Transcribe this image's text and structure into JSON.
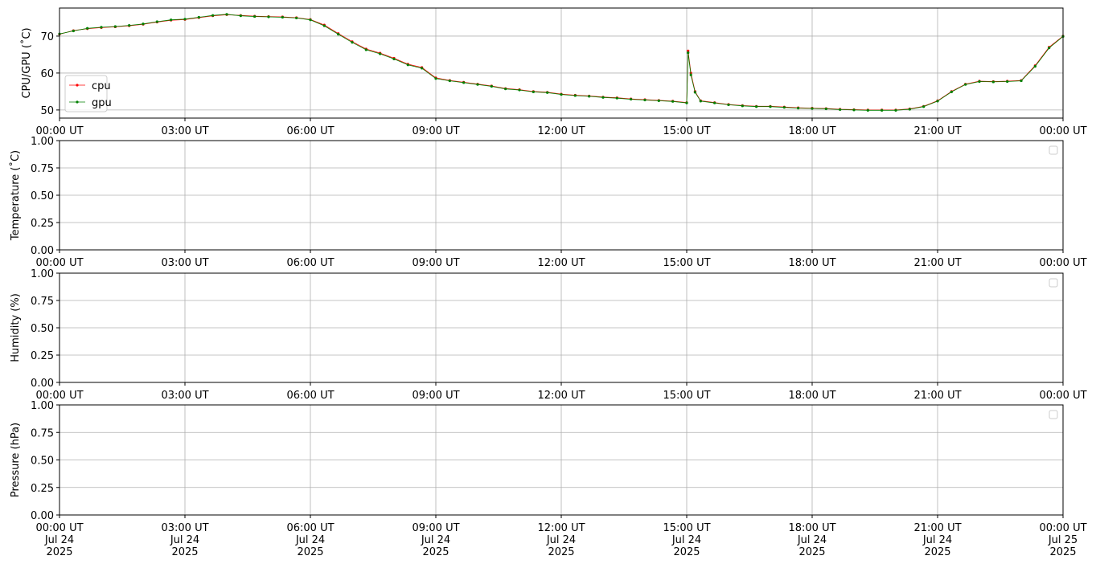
{
  "chart_data": [
    {
      "type": "line",
      "ylabel": "CPU/GPU (˚C)",
      "grid": true,
      "legend": "upper left",
      "xlim": [
        0,
        1440
      ],
      "ylim": [
        47.8,
        77.6
      ],
      "yticks": [
        50,
        60,
        70
      ],
      "xticks": [
        {
          "value": 0,
          "label": "00:00 UT"
        },
        {
          "value": 180,
          "label": "03:00 UT"
        },
        {
          "value": 360,
          "label": "06:00 UT"
        },
        {
          "value": 540,
          "label": "09:00 UT"
        },
        {
          "value": 720,
          "label": "12:00 UT"
        },
        {
          "value": 900,
          "label": "15:00 UT"
        },
        {
          "value": 1080,
          "label": "18:00 UT"
        },
        {
          "value": 1260,
          "label": "21:00 UT"
        },
        {
          "value": 1440,
          "label": "00:00 UT"
        }
      ],
      "x": [
        0,
        20,
        40,
        60,
        80,
        100,
        120,
        140,
        160,
        180,
        200,
        220,
        240,
        260,
        280,
        300,
        320,
        340,
        360,
        380,
        400,
        420,
        440,
        460,
        480,
        500,
        520,
        540,
        560,
        580,
        600,
        620,
        640,
        660,
        680,
        700,
        720,
        740,
        760,
        780,
        800,
        820,
        840,
        860,
        880,
        900,
        902,
        906,
        912,
        920,
        940,
        960,
        980,
        1000,
        1020,
        1040,
        1060,
        1080,
        1100,
        1120,
        1140,
        1160,
        1180,
        1200,
        1220,
        1240,
        1260,
        1280,
        1300,
        1320,
        1340,
        1360,
        1380,
        1400,
        1420,
        1440
      ],
      "series": [
        {
          "name": "cpu",
          "color": "#ff0000",
          "values": [
            70.5,
            71.5,
            72,
            72.3,
            72.5,
            72.8,
            73.2,
            73.8,
            74.3,
            74.5,
            75,
            75.5,
            75.8,
            75.6,
            75.4,
            75.3,
            75.2,
            75,
            74.5,
            73,
            70.7,
            68.5,
            66.5,
            65.4,
            64,
            62.4,
            61.5,
            58.7,
            58,
            57.5,
            57,
            56.5,
            55.8,
            55.5,
            55,
            54.8,
            54.3,
            54,
            53.8,
            53.5,
            53.3,
            53,
            52.8,
            52.6,
            52.4,
            52,
            66,
            60,
            55,
            52.5,
            52,
            51.5,
            51.2,
            51,
            51,
            50.8,
            50.6,
            50.5,
            50.4,
            50.2,
            50.1,
            50,
            50,
            50,
            50.3,
            51,
            52.5,
            55,
            57,
            57.8,
            57.7,
            57.8,
            58,
            62,
            67,
            70
          ]
        },
        {
          "name": "gpu",
          "color": "#008000",
          "values": [
            70.6,
            71.4,
            72.1,
            72.4,
            72.6,
            72.9,
            73.3,
            73.9,
            74.4,
            74.6,
            75.1,
            75.6,
            75.9,
            75.5,
            75.3,
            75.2,
            75.1,
            74.9,
            74.4,
            72.8,
            70.5,
            68.3,
            66.3,
            65.2,
            63.8,
            62.2,
            61.3,
            58.5,
            57.9,
            57.4,
            56.9,
            56.4,
            55.7,
            55.4,
            54.9,
            54.7,
            54.2,
            53.9,
            53.7,
            53.4,
            53.2,
            52.9,
            52.7,
            52.5,
            52.3,
            51.9,
            65.5,
            59.5,
            54.8,
            52.4,
            51.9,
            51.4,
            51.1,
            50.9,
            50.9,
            50.7,
            50.5,
            50.4,
            50.3,
            50.1,
            50,
            49.9,
            49.9,
            49.9,
            50.2,
            50.9,
            52.4,
            54.9,
            56.9,
            57.7,
            57.6,
            57.7,
            57.9,
            61.8,
            66.8,
            69.9
          ]
        }
      ]
    },
    {
      "type": "line",
      "ylabel": "Temperature (˚C)",
      "grid": true,
      "legend": "upper right",
      "xlim": [
        0,
        1440
      ],
      "ylim": [
        0,
        1
      ],
      "yticks": [
        {
          "value": 0,
          "label": "0.00"
        },
        {
          "value": 0.25,
          "label": "0.25"
        },
        {
          "value": 0.5,
          "label": "0.50"
        },
        {
          "value": 0.75,
          "label": "0.75"
        },
        {
          "value": 1,
          "label": "1.00"
        }
      ],
      "xticks": [
        {
          "value": 0,
          "label": "00:00 UT"
        },
        {
          "value": 180,
          "label": "03:00 UT"
        },
        {
          "value": 360,
          "label": "06:00 UT"
        },
        {
          "value": 540,
          "label": "09:00 UT"
        },
        {
          "value": 720,
          "label": "12:00 UT"
        },
        {
          "value": 900,
          "label": "15:00 UT"
        },
        {
          "value": 1080,
          "label": "18:00 UT"
        },
        {
          "value": 1260,
          "label": "21:00 UT"
        },
        {
          "value": 1440,
          "label": "00:00 UT"
        }
      ],
      "series": []
    },
    {
      "type": "line",
      "ylabel": "Humidity (%)",
      "grid": true,
      "legend": "upper right",
      "xlim": [
        0,
        1440
      ],
      "ylim": [
        0,
        1
      ],
      "yticks": [
        {
          "value": 0,
          "label": "0.00"
        },
        {
          "value": 0.25,
          "label": "0.25"
        },
        {
          "value": 0.5,
          "label": "0.50"
        },
        {
          "value": 0.75,
          "label": "0.75"
        },
        {
          "value": 1,
          "label": "1.00"
        }
      ],
      "xticks": [
        {
          "value": 0,
          "label": "00:00 UT"
        },
        {
          "value": 180,
          "label": "03:00 UT"
        },
        {
          "value": 360,
          "label": "06:00 UT"
        },
        {
          "value": 540,
          "label": "09:00 UT"
        },
        {
          "value": 720,
          "label": "12:00 UT"
        },
        {
          "value": 900,
          "label": "15:00 UT"
        },
        {
          "value": 1080,
          "label": "18:00 UT"
        },
        {
          "value": 1260,
          "label": "21:00 UT"
        },
        {
          "value": 1440,
          "label": "00:00 UT"
        }
      ],
      "series": []
    },
    {
      "type": "line",
      "ylabel": "Pressure (hPa)",
      "grid": true,
      "legend": "upper right",
      "xlim": [
        0,
        1440
      ],
      "ylim": [
        0,
        1
      ],
      "yticks": [
        {
          "value": 0,
          "label": "0.00"
        },
        {
          "value": 0.25,
          "label": "0.25"
        },
        {
          "value": 0.5,
          "label": "0.50"
        },
        {
          "value": 0.75,
          "label": "0.75"
        },
        {
          "value": 1,
          "label": "1.00"
        }
      ],
      "xticks": [
        {
          "value": 0,
          "label": "00:00 UT\nJul 24\n2025"
        },
        {
          "value": 180,
          "label": "03:00 UT\nJul 24\n2025"
        },
        {
          "value": 360,
          "label": "06:00 UT\nJul 24\n2025"
        },
        {
          "value": 540,
          "label": "09:00 UT\nJul 24\n2025"
        },
        {
          "value": 720,
          "label": "12:00 UT\nJul 24\n2025"
        },
        {
          "value": 900,
          "label": "15:00 UT\nJul 24\n2025"
        },
        {
          "value": 1080,
          "label": "18:00 UT\nJul 24\n2025"
        },
        {
          "value": 1260,
          "label": "21:00 UT\nJul 24\n2025"
        },
        {
          "value": 1440,
          "label": "00:00 UT\nJul 25\n2025"
        }
      ],
      "series": []
    }
  ]
}
